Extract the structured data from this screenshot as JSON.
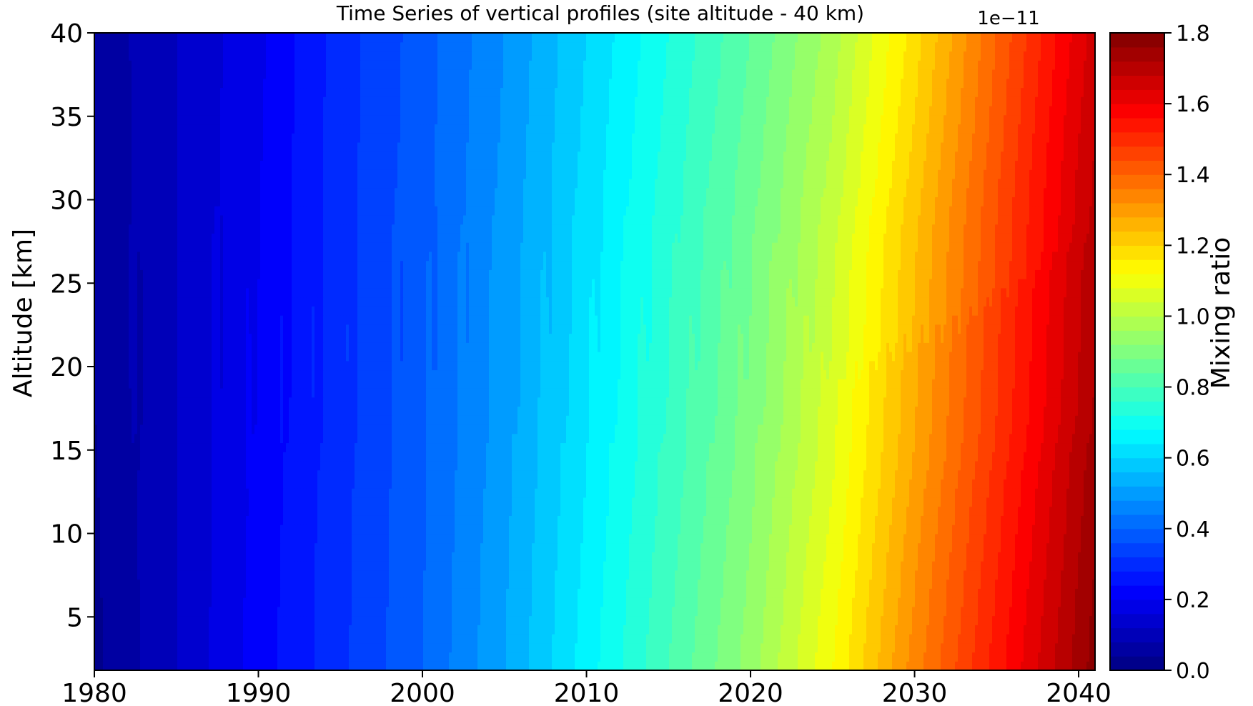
{
  "chart_data": {
    "type": "heatmap",
    "title": "Time Series of vertical profiles (site altitude - 40 km)",
    "xlabel": "",
    "ylabel": "Altitude [km]",
    "xlim": [
      1980,
      2041
    ],
    "ylim": [
      1.8,
      40
    ],
    "xticks": [
      1980,
      1990,
      2000,
      2010,
      2020,
      2030,
      2040
    ],
    "yticks": [
      5,
      10,
      15,
      20,
      25,
      30,
      35,
      40
    ],
    "xtick_labels": [
      "1980",
      "1990",
      "2000",
      "2010",
      "2020",
      "2030",
      "2040"
    ],
    "ytick_labels": [
      "5",
      "10",
      "15",
      "20",
      "25",
      "30",
      "35",
      "40"
    ],
    "colormap": "jet",
    "grid": false,
    "colorbar": {
      "label": "Mixing ratio",
      "offset_label": "1e−11",
      "range": [
        0.0,
        1.8
      ],
      "levels": 45,
      "ticks": [
        0.0,
        0.2,
        0.4,
        0.6,
        0.8,
        1.0,
        1.2,
        1.4,
        1.6,
        1.8
      ],
      "tick_labels": [
        "0.0",
        "0.2",
        "0.4",
        "0.6",
        "0.8",
        "1.0",
        "1.2",
        "1.4",
        "1.6",
        "1.8"
      ]
    },
    "data": {
      "description_units": "Mixing ratio values in units of 1e-11",
      "years": [
        1980,
        1985,
        1990,
        1995,
        2000,
        2005,
        2010,
        2015,
        2020,
        2025,
        2030,
        2035,
        2040,
        2041
      ],
      "value_at_surface": [
        0.03,
        0.12,
        0.22,
        0.31,
        0.4,
        0.52,
        0.66,
        0.8,
        0.94,
        1.12,
        1.34,
        1.54,
        1.74,
        1.78
      ],
      "value_at_40km": [
        0.05,
        0.12,
        0.19,
        0.3,
        0.38,
        0.48,
        0.6,
        0.72,
        0.84,
        0.98,
        1.18,
        1.4,
        1.62,
        1.66
      ]
    }
  }
}
